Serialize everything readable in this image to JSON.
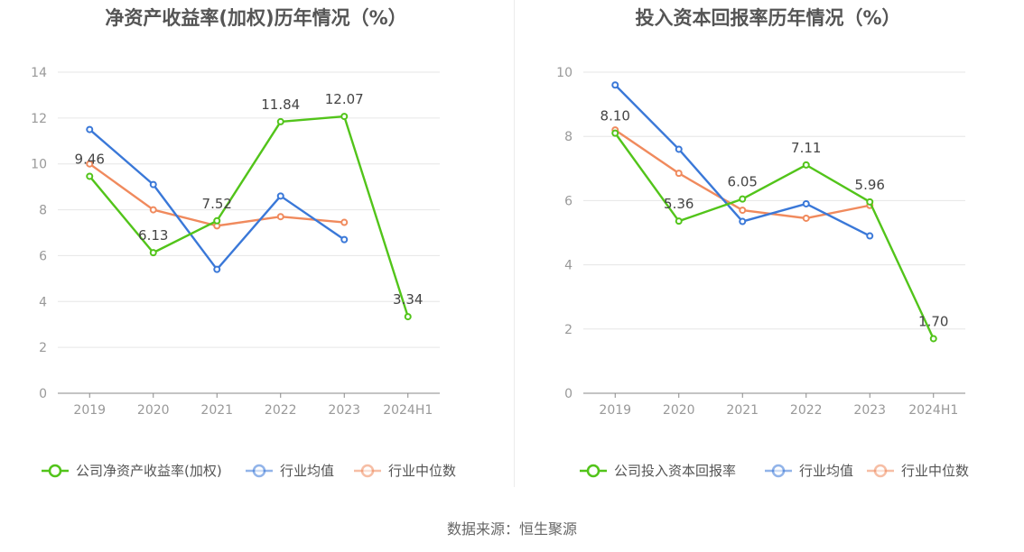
{
  "source_text": "数据来源：恒生聚源",
  "chart_data": [
    {
      "type": "line",
      "title": "净资产收益率(加权)历年情况（%）",
      "categories": [
        "2019",
        "2020",
        "2021",
        "2022",
        "2023",
        "2024H1"
      ],
      "ylim": [
        0,
        14
      ],
      "yticks": [
        0,
        2,
        4,
        6,
        8,
        10,
        12,
        14
      ],
      "grid": true,
      "legend_position": "bottom",
      "series": [
        {
          "name": "公司净资产收益率(加权)",
          "color": "#52c41a",
          "values": [
            9.46,
            6.13,
            7.52,
            11.84,
            12.07,
            3.34
          ],
          "labels": [
            "9.46",
            "6.13",
            "7.52",
            "11.84",
            "12.07",
            "3.34"
          ]
        },
        {
          "name": "行业均值",
          "color": "#3a78d8",
          "values": [
            11.5,
            9.1,
            5.4,
            8.6,
            6.7,
            null
          ]
        },
        {
          "name": "行业中位数",
          "color": "#f08a5d",
          "values": [
            10.0,
            8.0,
            7.3,
            7.7,
            7.45,
            null
          ]
        }
      ]
    },
    {
      "type": "line",
      "title": "投入资本回报率历年情况（%）",
      "categories": [
        "2019",
        "2020",
        "2021",
        "2022",
        "2023",
        "2024H1"
      ],
      "ylim": [
        0,
        10
      ],
      "yticks": [
        0,
        2,
        4,
        6,
        8,
        10
      ],
      "grid": true,
      "legend_position": "bottom",
      "series": [
        {
          "name": "公司投入资本回报率",
          "color": "#52c41a",
          "values": [
            8.1,
            5.36,
            6.05,
            7.11,
            5.96,
            1.7
          ],
          "labels": [
            "8.10",
            "5.36",
            "6.05",
            "7.11",
            "5.96",
            "1.70"
          ]
        },
        {
          "name": "行业均值",
          "color": "#3a78d8",
          "values": [
            9.6,
            7.6,
            5.35,
            5.9,
            4.9,
            null
          ]
        },
        {
          "name": "行业中位数",
          "color": "#f08a5d",
          "values": [
            8.2,
            6.85,
            5.7,
            5.45,
            5.85,
            null
          ]
        }
      ]
    }
  ]
}
